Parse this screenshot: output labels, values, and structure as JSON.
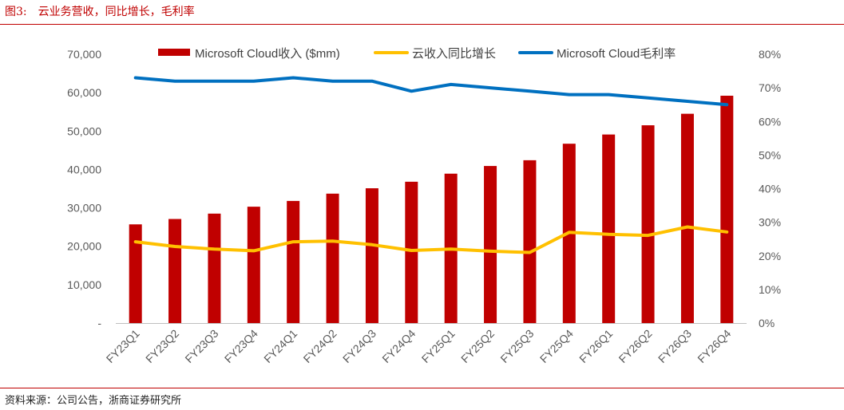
{
  "header": {
    "figure_label": "图3:",
    "figure_title": "云业务营收，同比增长，毛利率"
  },
  "footer": {
    "source": "资料来源：公司公告，浙商证券研究所"
  },
  "colors": {
    "bar": "#c00000",
    "growth_line": "#ffc000",
    "margin_line": "#0070c0",
    "rule": "#c00000"
  },
  "chart_data": {
    "type": "bar",
    "title": "",
    "categories": [
      "FY23Q1",
      "FY23Q2",
      "FY23Q3",
      "FY23Q4",
      "FY24Q1",
      "FY24Q2",
      "FY24Q3",
      "FY24Q4",
      "FY25Q1",
      "FY25Q2",
      "FY25Q3",
      "FY25Q4",
      "FY26Q1",
      "FY26Q2",
      "FY26Q3",
      "FY26Q4"
    ],
    "left_axis": {
      "range": [
        0,
        70000
      ],
      "ticks": [
        "-",
        "10,000",
        "20,000",
        "30,000",
        "40,000",
        "50,000",
        "60,000",
        "70,000"
      ]
    },
    "right_axis": {
      "range": [
        0,
        80
      ],
      "ticks": [
        "0%",
        "10%",
        "20%",
        "30%",
        "40%",
        "50%",
        "60%",
        "70%",
        "80%"
      ]
    },
    "legend_position": "top",
    "grid": false,
    "series": [
      {
        "name": "Microsoft Cloud收入 ($mm)",
        "kind": "bar",
        "axis": "left",
        "values": [
          25700,
          27100,
          28500,
          30300,
          31800,
          33700,
          35100,
          36800,
          38900,
          40900,
          42400,
          46700,
          49100,
          51500,
          54500,
          59200
        ]
      },
      {
        "name": "云收入同比增长",
        "kind": "line",
        "axis": "right",
        "values": [
          24.2,
          22.8,
          22.0,
          21.5,
          24.2,
          24.4,
          23.3,
          21.6,
          22.0,
          21.4,
          21.0,
          27.0,
          26.4,
          26.1,
          28.6,
          27.1
        ]
      },
      {
        "name": "Microsoft Cloud毛利率",
        "kind": "line",
        "axis": "right",
        "values": [
          73.0,
          72.0,
          72.0,
          72.0,
          73.0,
          72.0,
          72.0,
          69.0,
          71.0,
          70.0,
          69.0,
          68.0,
          68.0,
          67.0,
          66.0,
          65.0
        ]
      }
    ]
  }
}
